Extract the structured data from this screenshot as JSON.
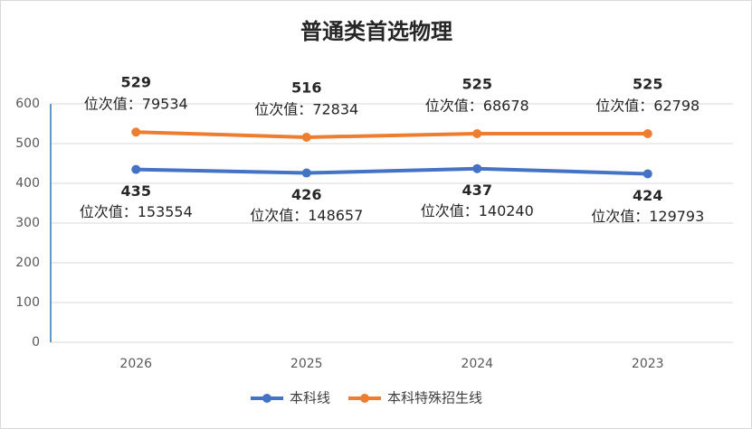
{
  "chart_data": {
    "type": "line",
    "title": "普通类首选物理",
    "categories": [
      "2026",
      "2025",
      "2024",
      "2023"
    ],
    "series": [
      {
        "name": "本科线",
        "color": "#4472c4",
        "values": [
          435,
          426,
          437,
          424
        ],
        "rank_labels": [
          "位次值：153554",
          "位次值：148657",
          "位次值：140240",
          "位次值：129793"
        ]
      },
      {
        "name": "本科特殊招生线",
        "color": "#ed7d31",
        "values": [
          529,
          516,
          525,
          525
        ],
        "rank_labels": [
          "位次值：79534",
          "位次值：72834",
          "位次值：68678",
          "位次值：62798"
        ]
      }
    ],
    "ylim": [
      0,
      600
    ],
    "yticks": [
      0,
      100,
      200,
      300,
      400,
      500,
      600
    ],
    "grid": true,
    "legend": "bottom"
  }
}
